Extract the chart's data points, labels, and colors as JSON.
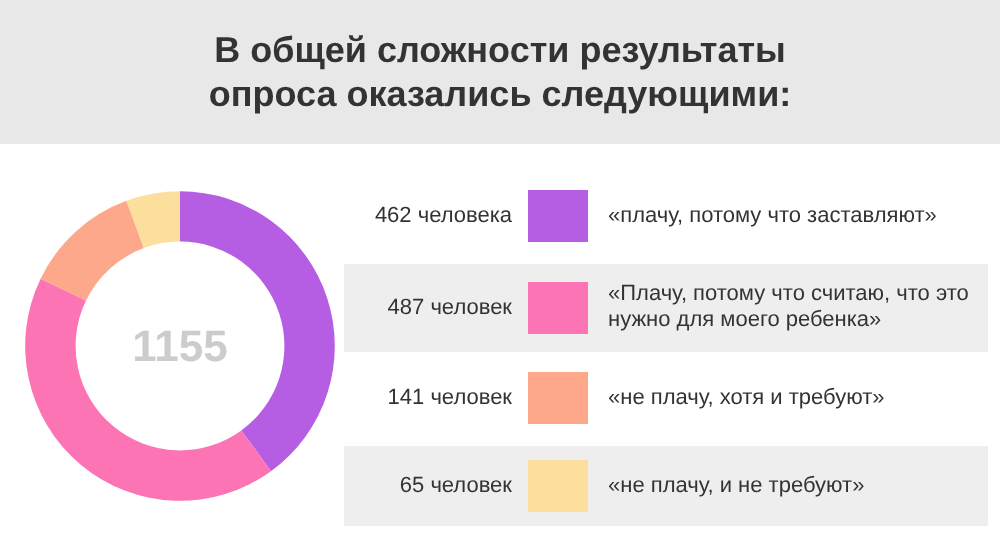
{
  "chart_data": {
    "type": "donut",
    "title": "В общей сложности результаты опроса оказались следующими:",
    "categories": [
      "«плачу, потому что заставляют»",
      "«Плачу, потому что считаю, что это нужно для моего ребенка»",
      "«не плачу, хотя и требуют»",
      "«не плачу, и не требуют»"
    ],
    "values": [
      462,
      487,
      141,
      65
    ],
    "value_labels": [
      "462 человека",
      "487 человек",
      "141 человек",
      "65 человек"
    ],
    "colors": [
      "#b65ee3",
      "#fd74b4",
      "#fda88a",
      "#fcdf9d"
    ],
    "annotations": [
      "1155"
    ],
    "legend": "right"
  }
}
